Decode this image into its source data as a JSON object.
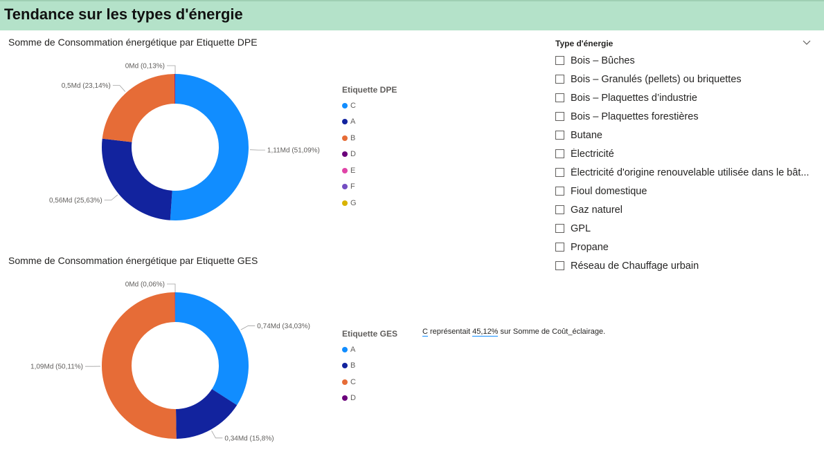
{
  "header": {
    "title": "Tendance sur les types d'énergie"
  },
  "chart_data": [
    {
      "type": "pie",
      "title": "Somme de Consommation énergétique par Etiquette DPE",
      "legend_title": "Etiquette DPE",
      "legend_position": "right",
      "donut": true,
      "slices": [
        {
          "name": "C",
          "value": 1.11,
          "label": "1,11Md (51,09%)",
          "color": "#118dff"
        },
        {
          "name": "A",
          "value": 0.56,
          "label": "0,56Md (25,63%)",
          "color": "#12239e"
        },
        {
          "name": "B",
          "value": 0.5,
          "label": "0,5Md (23,14%)",
          "color": "#e66c37"
        },
        {
          "name": "D",
          "value": 0.0028,
          "label": "0Md (0,13%)",
          "color": "#6b007b"
        }
      ],
      "legend": [
        {
          "name": "C",
          "color": "#118dff"
        },
        {
          "name": "A",
          "color": "#12239e"
        },
        {
          "name": "B",
          "color": "#e66c37"
        },
        {
          "name": "D",
          "color": "#6b007b"
        },
        {
          "name": "E",
          "color": "#e044a7"
        },
        {
          "name": "F",
          "color": "#744ec2"
        },
        {
          "name": "G",
          "color": "#d9b300"
        }
      ]
    },
    {
      "type": "pie",
      "title": "Somme de Consommation énergétique par Etiquette GES",
      "legend_title": "Etiquette GES",
      "legend_position": "right",
      "donut": true,
      "slices": [
        {
          "name": "A",
          "value": 0.74,
          "label": "0,74Md (34,03%)",
          "color": "#118dff"
        },
        {
          "name": "B",
          "value": 0.34,
          "label": "0,34Md (15,8%)",
          "color": "#12239e"
        },
        {
          "name": "C",
          "value": 1.09,
          "label": "1,09Md (50,11%)",
          "color": "#e66c37"
        },
        {
          "name": "D",
          "value": 0.0013,
          "label": "0Md (0,06%)",
          "color": "#6b007b"
        }
      ],
      "legend": [
        {
          "name": "A",
          "color": "#118dff"
        },
        {
          "name": "B",
          "color": "#12239e"
        },
        {
          "name": "C",
          "color": "#e66c37"
        },
        {
          "name": "D",
          "color": "#6b007b"
        }
      ]
    }
  ],
  "slicer": {
    "title": "Type d'énergie",
    "icon": "chevron-down-icon",
    "items": [
      "Bois – Bûches",
      "Bois – Granulés (pellets) ou briquettes",
      "Bois – Plaquettes d’industrie",
      "Bois – Plaquettes forestières",
      "Butane",
      "Électricité",
      "Électricité d'origine renouvelable utilisée dans le bât...",
      "Fioul domestique",
      "Gaz naturel",
      "GPL",
      "Propane",
      "Réseau de Chauffage urbain"
    ]
  },
  "smart_narrative": {
    "category": "C",
    "text1": " représentait ",
    "percent": "45,12%",
    "text2": " sur Somme de Coût_éclairage."
  }
}
